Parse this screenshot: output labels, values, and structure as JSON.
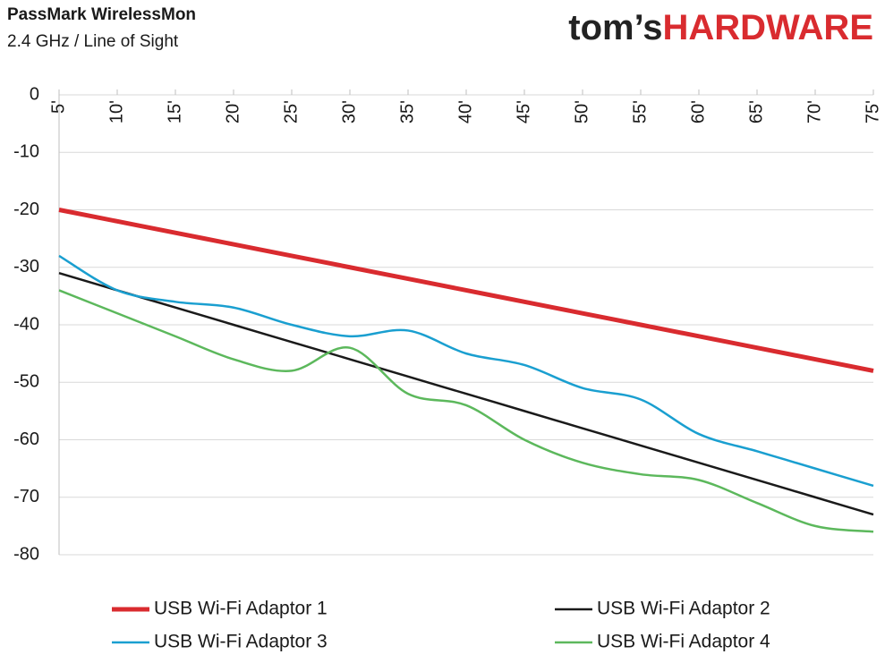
{
  "chart_data": {
    "type": "line",
    "title": "PassMark WirelessMon",
    "subtitle": "2.4 GHz / Line of Sight",
    "categories": [
      "5'",
      "10'",
      "15'",
      "20'",
      "25'",
      "30'",
      "35'",
      "40'",
      "45'",
      "50'",
      "55'",
      "60'",
      "65'",
      "70'",
      "75'"
    ],
    "series": [
      {
        "name": "USB Wi-Fi Adaptor 1",
        "color": "#d92b2f",
        "values": [
          -20,
          -22,
          -24,
          -26,
          -28,
          -30,
          -32,
          -34,
          -36,
          -38,
          -40,
          -42,
          -44,
          -46,
          -48
        ]
      },
      {
        "name": "USB Wi-Fi Adaptor 2",
        "color": "#1a1a1a",
        "values": [
          -31,
          -34,
          -37,
          -40,
          -43,
          -46,
          -49,
          -52,
          -55,
          -58,
          -61,
          -64,
          -67,
          -70,
          -73
        ]
      },
      {
        "name": "USB Wi-Fi Adaptor 3",
        "color": "#1a9fd0",
        "values": [
          -28,
          -34,
          -36,
          -37,
          -40,
          -42,
          -41,
          -45,
          -47,
          -51,
          -53,
          -59,
          -62,
          -65,
          -68
        ]
      },
      {
        "name": "USB Wi-Fi Adaptor 4",
        "color": "#5cb85c",
        "values": [
          -34,
          -38,
          -42,
          -46,
          -48,
          -44,
          -52,
          -54,
          -60,
          -64,
          -66,
          -67,
          -71,
          -75,
          -76
        ]
      }
    ],
    "ylim": [
      -80,
      0
    ],
    "yticks": [
      0,
      -10,
      -20,
      -30,
      -40,
      -50,
      -60,
      -70,
      -80
    ],
    "grid": true,
    "smooth": true,
    "legend": "bottom"
  },
  "logo": {
    "prefix": "tom’s",
    "name": "HARDWARE"
  }
}
